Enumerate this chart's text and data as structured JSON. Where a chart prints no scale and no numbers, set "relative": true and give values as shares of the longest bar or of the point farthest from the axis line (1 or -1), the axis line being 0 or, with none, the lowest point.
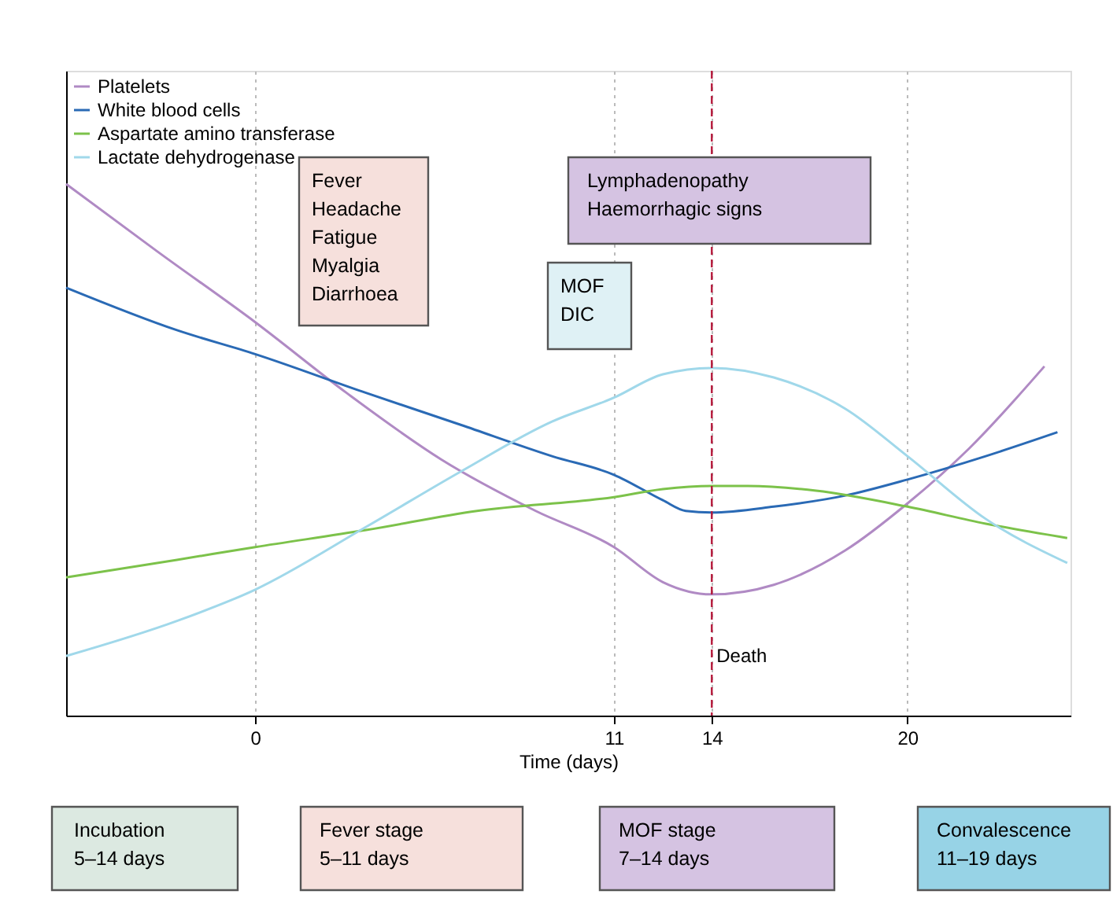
{
  "chart_data": {
    "type": "line",
    "relative": true,
    "xlabel": "Time (days)",
    "xlim": [
      -5.8,
      25
    ],
    "xticks": [
      0,
      11,
      14,
      20
    ],
    "grid": "x",
    "legend": "top left",
    "series": [
      {
        "name": "Platelets",
        "color": "#b08ac4",
        "x": [
          -5.8,
          -3.0,
          0,
          2.8,
          5.7,
          8.6,
          11,
          12.5,
          14,
          15.9,
          18.1,
          20,
          21.9,
          24.2
        ],
        "values": [
          1.0,
          0.873,
          0.74,
          0.607,
          0.482,
          0.385,
          0.317,
          0.251,
          0.228,
          0.246,
          0.311,
          0.399,
          0.503,
          0.657
        ]
      },
      {
        "name": "White blood cells",
        "color": "#2a6ab5",
        "x": [
          -5.8,
          -2.4,
          0,
          3.4,
          6.3,
          9.1,
          11,
          12.5,
          13.2,
          14,
          15.9,
          18.1,
          20,
          22.4,
          24.6
        ],
        "values": [
          0.805,
          0.725,
          0.68,
          0.607,
          0.547,
          0.488,
          0.453,
          0.405,
          0.385,
          0.382,
          0.393,
          0.414,
          0.444,
          0.488,
          0.533
        ]
      },
      {
        "name": "Aspartate amino transferase",
        "color": "#7cc24a",
        "x": [
          -5.8,
          -2.4,
          0,
          3.4,
          6.8,
          11,
          12.5,
          14,
          15.1,
          17.2,
          20,
          22.4,
          24.9
        ],
        "values": [
          0.26,
          0.293,
          0.317,
          0.349,
          0.385,
          0.411,
          0.426,
          0.432,
          0.432,
          0.423,
          0.393,
          0.361,
          0.334
        ]
      },
      {
        "name": "Lactate dehydrogenase",
        "color": "#a0d8ea",
        "x": [
          -5.8,
          -2.4,
          0,
          3.4,
          6.3,
          9.1,
          11,
          12.5,
          14,
          15.9,
          18.1,
          20,
          22.4,
          24.9
        ],
        "values": [
          0.112,
          0.178,
          0.237,
          0.355,
          0.459,
          0.553,
          0.598,
          0.642,
          0.654,
          0.636,
          0.577,
          0.488,
          0.37,
          0.287
        ]
      }
    ],
    "ref_lines": [
      {
        "axis": "x",
        "value": 14,
        "label": "Death",
        "color": "#b5173a",
        "line_style": "dashed"
      }
    ],
    "annotations": [
      "Fever\nHeadache\nFatigue\nMyalgia\nDiarrhoea",
      "MOF\nDIC",
      "Lymphadenopathy\nHaemorrhagic signs",
      "Incubation\n5–14 days",
      "Fever stage\n5–11 days",
      "MOF stage\n7–14 days",
      "Convalescence\n11–19 days"
    ]
  }
}
